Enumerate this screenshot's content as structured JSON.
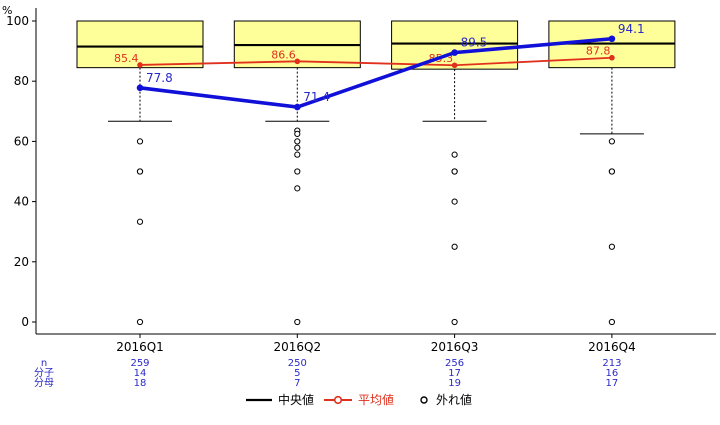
{
  "chart_data": {
    "type": "box",
    "unit_label": "%",
    "categories": [
      "2016Q1",
      "2016Q2",
      "2016Q3",
      "2016Q4"
    ],
    "ylim": [
      0,
      100
    ],
    "yticks": [
      0,
      20,
      40,
      60,
      80,
      100
    ],
    "y_tick_labels": [
      "0",
      "20",
      "40",
      "60",
      "80",
      "100"
    ],
    "boxes": [
      {
        "q1": 84.5,
        "median": 91.5,
        "q3": 100,
        "whisker_low": 66.7,
        "whisker_high": 100
      },
      {
        "q1": 84.5,
        "median": 92,
        "q3": 100,
        "whisker_low": 66.7,
        "whisker_high": 100
      },
      {
        "q1": 84,
        "median": 92.5,
        "q3": 100,
        "whisker_low": 66.7,
        "whisker_high": 100
      },
      {
        "q1": 84.5,
        "median": 92.5,
        "q3": 100,
        "whisker_low": 62.5,
        "whisker_high": 100
      }
    ],
    "outliers": [
      [
        60,
        50,
        50,
        33.3,
        0
      ],
      [
        63.6,
        62.5,
        60,
        57.9,
        55.6,
        50,
        44.4,
        0
      ],
      [
        55.6,
        50,
        50,
        40,
        25,
        0
      ],
      [
        60,
        50,
        50,
        25,
        0
      ]
    ],
    "series": [
      {
        "name": "平均値",
        "values": [
          85.4,
          86.6,
          85.3,
          87.8
        ],
        "labels": [
          "85.4",
          "86.6",
          "85.3",
          "87.8"
        ],
        "color": "#e0301e"
      },
      {
        "values": [
          77.8,
          71.4,
          89.5,
          94.1
        ],
        "labels": [
          "77.8",
          "71.4",
          "89.5",
          "94.1"
        ],
        "color": "#1010d8"
      }
    ],
    "count_table": {
      "row_labels": [
        "n",
        "分子",
        "分母"
      ],
      "values": [
        [
          "259",
          "14",
          "18"
        ],
        [
          "250",
          "5",
          "7"
        ],
        [
          "256",
          "17",
          "19"
        ],
        [
          "213",
          "16",
          "17"
        ]
      ]
    },
    "legend": {
      "position": "bottom",
      "items": [
        {
          "label": "中央値",
          "color": "#000000"
        },
        {
          "label": "平均値",
          "color": "#e0301e"
        },
        {
          "label": "外れ値",
          "color": "#000000"
        }
      ]
    },
    "colors": {
      "box_fill": "#ffff99",
      "median": "#000000"
    }
  }
}
